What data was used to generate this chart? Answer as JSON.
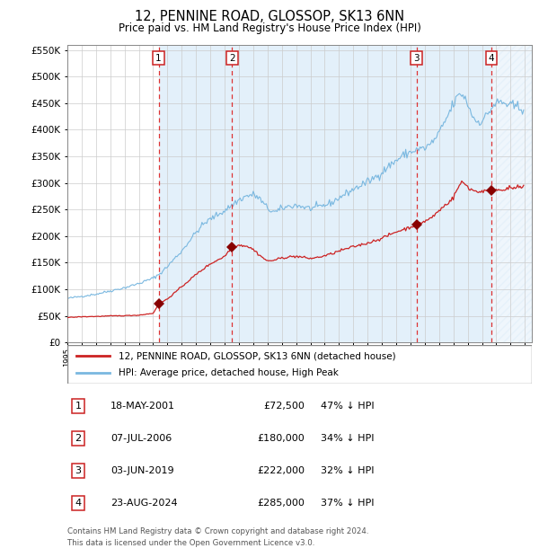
{
  "title": "12, PENNINE ROAD, GLOSSOP, SK13 6NN",
  "subtitle": "Price paid vs. HM Land Registry's House Price Index (HPI)",
  "legend_line1": "12, PENNINE ROAD, GLOSSOP, SK13 6NN (detached house)",
  "legend_line2": "HPI: Average price, detached house, High Peak",
  "footer1": "Contains HM Land Registry data © Crown copyright and database right 2024.",
  "footer2": "This data is licensed under the Open Government Licence v3.0.",
  "transactions": [
    {
      "label": "1",
      "date": "2001-05-18",
      "price": 72500,
      "pct": "47% ↓ HPI",
      "x_year": 2001.38
    },
    {
      "label": "2",
      "date": "2006-07-07",
      "price": 180000,
      "pct": "34% ↓ HPI",
      "x_year": 2006.52
    },
    {
      "label": "3",
      "date": "2019-06-03",
      "price": 222000,
      "pct": "32% ↓ HPI",
      "x_year": 2019.42
    },
    {
      "label": "4",
      "date": "2024-08-23",
      "price": 285000,
      "pct": "37% ↓ HPI",
      "x_year": 2024.65
    }
  ],
  "table_rows": [
    {
      "label": "1",
      "date": "18-MAY-2001",
      "price": "£72,500",
      "pct": "47% ↓ HPI"
    },
    {
      "label": "2",
      "date": "07-JUL-2006",
      "price": "£180,000",
      "pct": "34% ↓ HPI"
    },
    {
      "label": "3",
      "date": "03-JUN-2019",
      "price": "£222,000",
      "pct": "32% ↓ HPI"
    },
    {
      "label": "4",
      "date": "23-AUG-2024",
      "price": "£285,000",
      "pct": "37% ↓ HPI"
    }
  ],
  "hpi_color": "#7ab8e0",
  "price_color": "#cc2222",
  "marker_color": "#880000",
  "box_color": "#cc2222",
  "dashed_color": "#dd3333",
  "bg_band_color": "#d8eaf8",
  "ylim": [
    0,
    560000
  ],
  "xlim_start": 1995.0,
  "xlim_end": 2027.5,
  "yticks": [
    0,
    50000,
    100000,
    150000,
    200000,
    250000,
    300000,
    350000,
    400000,
    450000,
    500000,
    550000
  ]
}
